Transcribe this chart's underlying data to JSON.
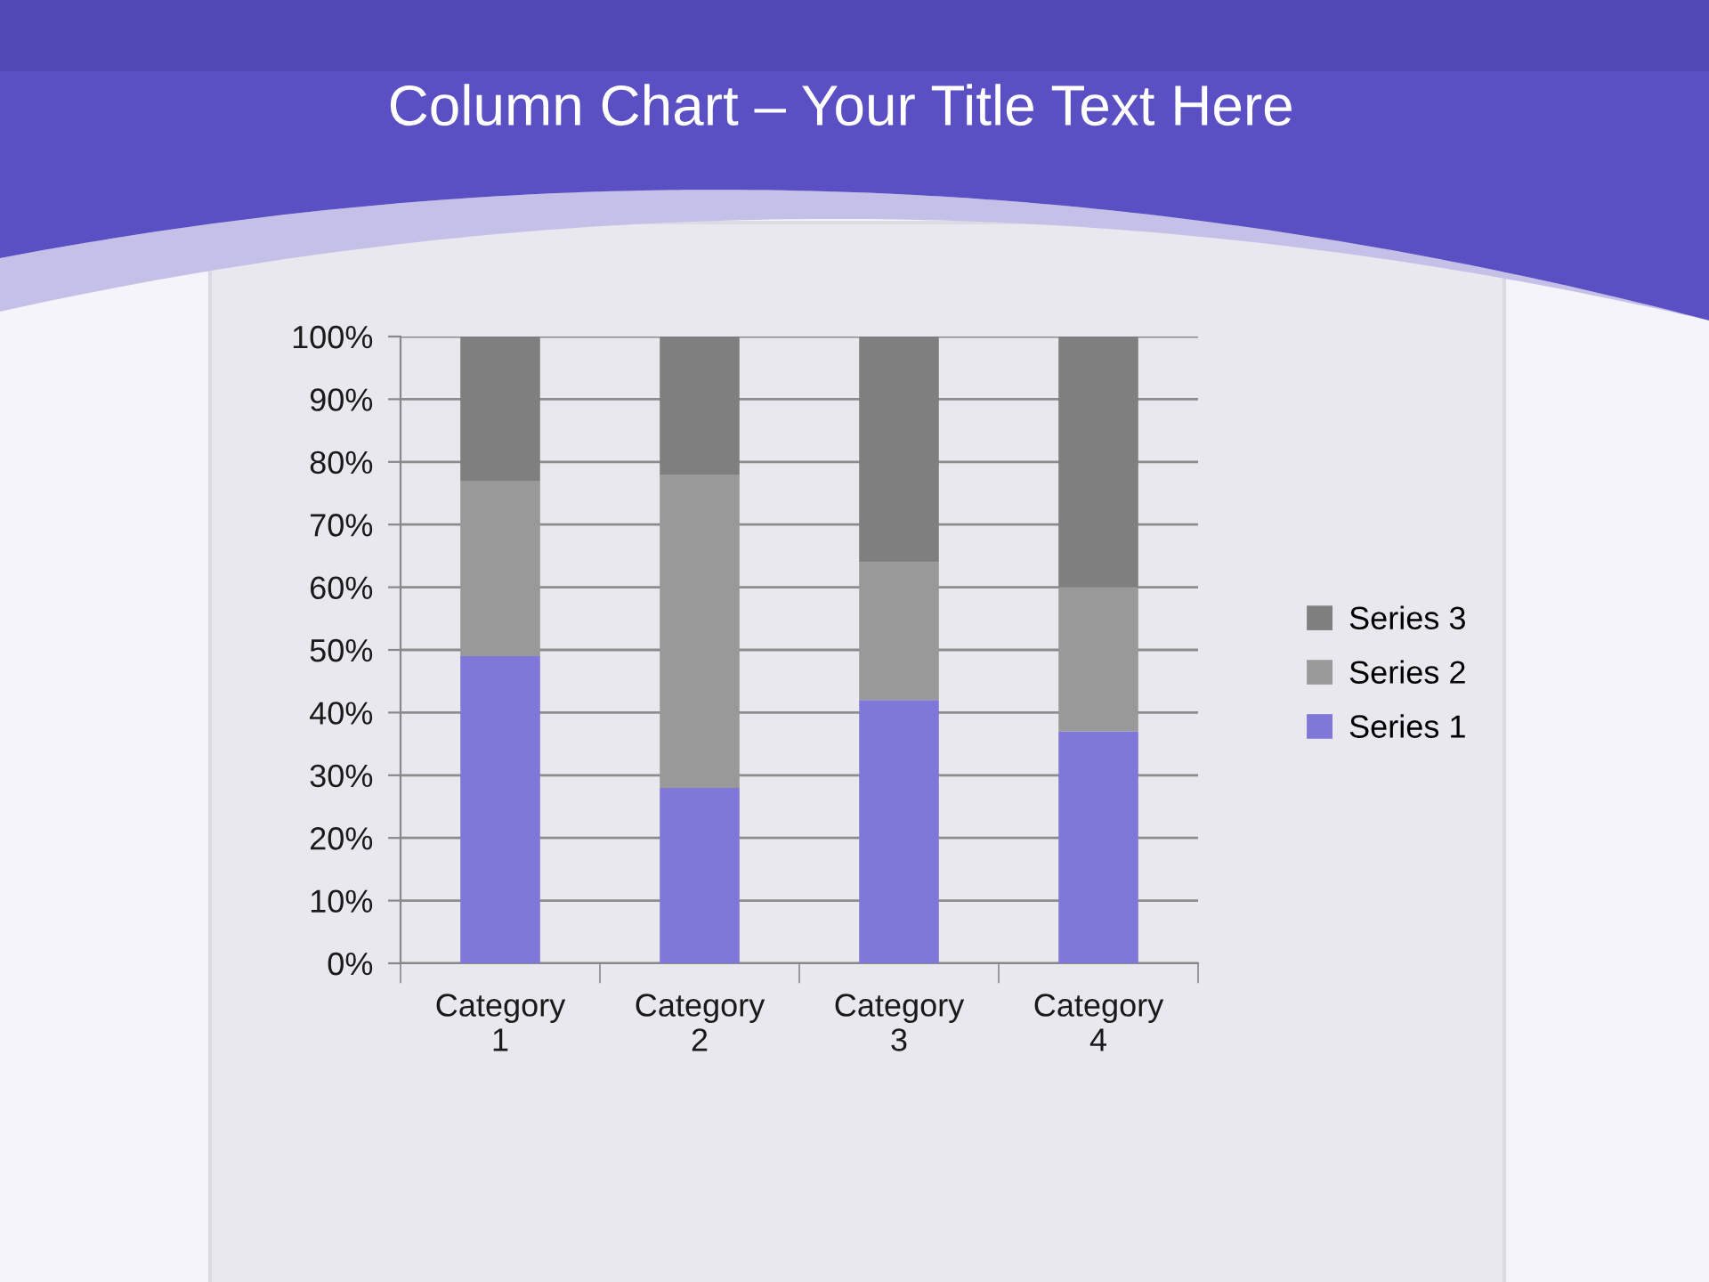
{
  "chart_data": {
    "type": "bar",
    "title": "Column Chart – Your Title Text Here",
    "categories": [
      "Category 1",
      "Category 2",
      "Category 3",
      "Category 4"
    ],
    "series": [
      {
        "name": "Series 1",
        "color": "#8078d8",
        "values": [
          49,
          28,
          42,
          37
        ]
      },
      {
        "name": "Series 2",
        "color": "#999999",
        "values": [
          28,
          50,
          22,
          23
        ]
      },
      {
        "name": "Series 3",
        "color": "#7f7f7f",
        "values": [
          23,
          22,
          36,
          40
        ]
      }
    ],
    "stacked": true,
    "ylim": [
      0,
      100
    ],
    "yticks": [
      {
        "value": 0,
        "label": "0%"
      },
      {
        "value": 10,
        "label": "10%"
      },
      {
        "value": 20,
        "label": "20%"
      },
      {
        "value": 30,
        "label": "30%"
      },
      {
        "value": 40,
        "label": "40%"
      },
      {
        "value": 50,
        "label": "50%"
      },
      {
        "value": 60,
        "label": "60%"
      },
      {
        "value": 70,
        "label": "70%"
      },
      {
        "value": 80,
        "label": "80%"
      },
      {
        "value": 90,
        "label": "90%"
      },
      {
        "value": 100,
        "label": "100%"
      }
    ],
    "grid": "y",
    "legend": "right"
  }
}
